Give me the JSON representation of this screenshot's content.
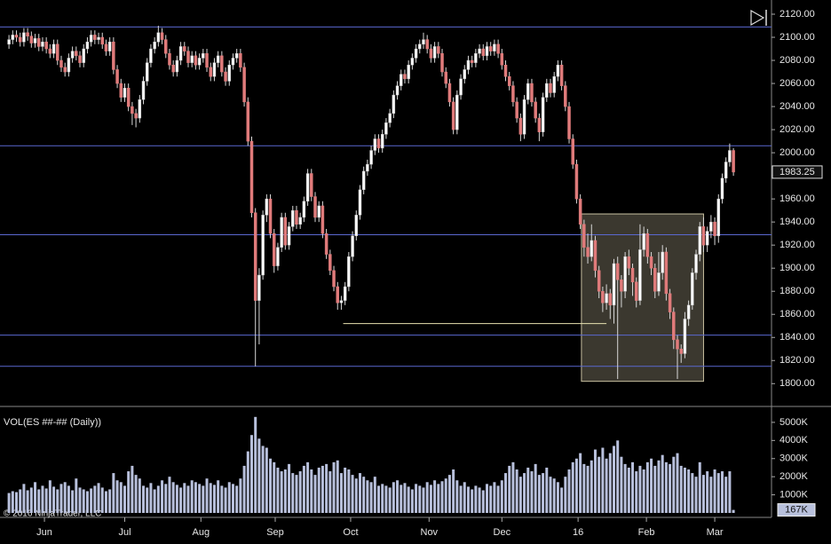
{
  "chart_data": [
    {
      "type": "candlestick",
      "up_color": "#ffffff",
      "down_color": "#e07b7b",
      "wick_color": "#d8d8d8",
      "xlim": [
        -2.4,
        204.2
      ],
      "xticks": [
        {
          "value": 9.5,
          "label": "Jun"
        },
        {
          "value": 31,
          "label": "Jul"
        },
        {
          "value": 51.4,
          "label": "Aug"
        },
        {
          "value": 71.3,
          "label": "Sep"
        },
        {
          "value": 91.5,
          "label": "Oct"
        },
        {
          "value": 112.5,
          "label": "Nov"
        },
        {
          "value": 132,
          "label": "Dec"
        },
        {
          "value": 152.4,
          "label": "16"
        },
        {
          "value": 170.7,
          "label": "Feb"
        },
        {
          "value": 189,
          "label": "Mar"
        }
      ],
      "ylim": [
        1781,
        2130
      ],
      "yticks": [
        {
          "value": 1800,
          "label": "1800.00"
        },
        {
          "value": 1820,
          "label": "1820.00"
        },
        {
          "value": 1840,
          "label": "1840.00"
        },
        {
          "value": 1860,
          "label": "1860.00"
        },
        {
          "value": 1880,
          "label": "1880.00"
        },
        {
          "value": 1900,
          "label": "1900.00"
        },
        {
          "value": 1920,
          "label": "1920.00"
        },
        {
          "value": 1940,
          "label": "1940.00"
        },
        {
          "value": 1960,
          "label": "1960.00"
        },
        {
          "value": 1980,
          "label": "1980.00"
        },
        {
          "value": 2000,
          "label": "2000.00"
        },
        {
          "value": 2020,
          "label": "2020.00"
        },
        {
          "value": 2040,
          "label": "2040.00"
        },
        {
          "value": 2060,
          "label": "2060.00"
        },
        {
          "value": 2080,
          "label": "2080.00"
        },
        {
          "value": 2100,
          "label": "2100.00"
        },
        {
          "value": 2120,
          "label": "2120.00"
        }
      ],
      "open": [
        2094,
        2098,
        2102,
        2100,
        2096,
        2104,
        2101,
        2095,
        2099,
        2092,
        2096,
        2090,
        2086,
        2094,
        2080,
        2074,
        2070,
        2082,
        2088,
        2084,
        2078,
        2090,
        2096,
        2102,
        2098,
        2100,
        2094,
        2088,
        2096,
        2072,
        2060,
        2048,
        2056,
        2040,
        2034,
        2030,
        2046,
        2062,
        2078,
        2090,
        2096,
        2104,
        2098,
        2086,
        2076,
        2070,
        2080,
        2092,
        2088,
        2078,
        2084,
        2076,
        2082,
        2086,
        2074,
        2066,
        2078,
        2084,
        2070,
        2062,
        2076,
        2082,
        2086,
        2074,
        2044,
        2010,
        1948,
        1872,
        1894,
        1946,
        1960,
        1930,
        1902,
        1918,
        1944,
        1920,
        1936,
        1950,
        1938,
        1944,
        1958,
        1982,
        1962,
        1944,
        1954,
        1930,
        1912,
        1898,
        1884,
        1870,
        1872,
        1884,
        1910,
        1928,
        1946,
        1968,
        1984,
        1990,
        2002,
        2012,
        2004,
        2016,
        2026,
        2034,
        2050,
        2058,
        2068,
        2064,
        2076,
        2082,
        2090,
        2094,
        2098,
        2090,
        2082,
        2092,
        2086,
        2070,
        2060,
        2044,
        2020,
        2050,
        2064,
        2072,
        2080,
        2078,
        2086,
        2090,
        2084,
        2092,
        2088,
        2094,
        2086,
        2076,
        2066,
        2058,
        2044,
        2030,
        2016,
        2046,
        2060,
        2044,
        2030,
        2018,
        2048,
        2060,
        2052,
        2066,
        2076,
        2058,
        2040,
        2012,
        1990,
        1960,
        1938,
        1918,
        1910,
        1924,
        1898,
        1880,
        1870,
        1878,
        1868,
        1904,
        1890,
        1880,
        1910,
        1900,
        1888,
        1872,
        1916,
        1930,
        1910,
        1900,
        1880,
        1896,
        1914,
        1878,
        1862,
        1838,
        1830,
        1826,
        1856,
        1868,
        1896,
        1912,
        1936,
        1920,
        1932,
        1940,
        1928,
        1960,
        1978,
        1992,
        2002
      ],
      "high": [
        2102,
        2106,
        2106,
        2104,
        2108,
        2108,
        2105,
        2103,
        2103,
        2100,
        2100,
        2094,
        2098,
        2098,
        2084,
        2078,
        2086,
        2092,
        2092,
        2088,
        2094,
        2100,
        2106,
        2106,
        2104,
        2104,
        2098,
        2100,
        2100,
        2076,
        2064,
        2060,
        2060,
        2044,
        2038,
        2050,
        2066,
        2082,
        2094,
        2100,
        2110,
        2108,
        2102,
        2090,
        2080,
        2084,
        2096,
        2096,
        2092,
        2088,
        2088,
        2086,
        2090,
        2090,
        2078,
        2082,
        2088,
        2088,
        2074,
        2080,
        2086,
        2090,
        2090,
        2078,
        2048,
        2014,
        1952,
        1900,
        1950,
        1964,
        1964,
        1934,
        1922,
        1948,
        1948,
        1940,
        1954,
        1954,
        1948,
        1962,
        1986,
        1986,
        1966,
        1958,
        1958,
        1934,
        1916,
        1902,
        1888,
        1876,
        1888,
        1914,
        1932,
        1950,
        1972,
        1988,
        1994,
        2006,
        2016,
        2016,
        2020,
        2030,
        2038,
        2054,
        2062,
        2072,
        2072,
        2080,
        2086,
        2094,
        2098,
        2104,
        2102,
        2094,
        2096,
        2096,
        2090,
        2074,
        2064,
        2048,
        2054,
        2068,
        2076,
        2084,
        2084,
        2090,
        2094,
        2094,
        2096,
        2096,
        2098,
        2098,
        2090,
        2080,
        2070,
        2062,
        2048,
        2034,
        2050,
        2064,
        2064,
        2048,
        2034,
        2052,
        2064,
        2064,
        2070,
        2080,
        2080,
        2062,
        2044,
        2016,
        1994,
        1964,
        1942,
        1930,
        1938,
        1928,
        1902,
        1884,
        1886,
        1882,
        1908,
        1910,
        1894,
        1914,
        1916,
        1904,
        1892,
        1938,
        1936,
        1934,
        1914,
        1904,
        1914,
        1920,
        1918,
        1882,
        1866,
        1842,
        1834,
        1862,
        1872,
        1900,
        1916,
        1940,
        1944,
        1936,
        1946,
        1944,
        1964,
        1982,
        1996,
        2008,
        2004
      ],
      "low": [
        2090,
        2094,
        2096,
        2092,
        2092,
        2097,
        2091,
        2091,
        2088,
        2088,
        2086,
        2082,
        2082,
        2076,
        2070,
        2066,
        2066,
        2078,
        2080,
        2074,
        2074,
        2086,
        2092,
        2094,
        2094,
        2090,
        2084,
        2084,
        2068,
        2056,
        2044,
        2044,
        2036,
        2024,
        2022,
        2026,
        2042,
        2058,
        2074,
        2086,
        2092,
        2094,
        2082,
        2072,
        2066,
        2066,
        2076,
        2084,
        2074,
        2074,
        2072,
        2072,
        2078,
        2070,
        2062,
        2062,
        2074,
        2066,
        2058,
        2058,
        2072,
        2078,
        2070,
        2040,
        2006,
        1944,
        1815,
        1834,
        1890,
        1940,
        1926,
        1896,
        1898,
        1914,
        1916,
        1916,
        1932,
        1934,
        1934,
        1940,
        1954,
        1958,
        1940,
        1940,
        1926,
        1908,
        1894,
        1880,
        1864,
        1864,
        1868,
        1880,
        1906,
        1924,
        1942,
        1964,
        1980,
        1986,
        1998,
        2000,
        2000,
        2012,
        2022,
        2030,
        2046,
        2054,
        2060,
        2060,
        2072,
        2078,
        2086,
        2090,
        2086,
        2078,
        2078,
        2082,
        2066,
        2056,
        2040,
        2016,
        2016,
        2046,
        2060,
        2068,
        2074,
        2074,
        2082,
        2080,
        2080,
        2084,
        2084,
        2082,
        2072,
        2062,
        2054,
        2040,
        2026,
        2010,
        2012,
        2042,
        2040,
        2026,
        2010,
        2014,
        2044,
        2048,
        2048,
        2062,
        2054,
        2036,
        2008,
        1986,
        1956,
        1934,
        1910,
        1904,
        1906,
        1892,
        1874,
        1862,
        1864,
        1856,
        1852,
        1804,
        1866,
        1874,
        1894,
        1876,
        1866,
        1868,
        1910,
        1904,
        1894,
        1874,
        1876,
        1890,
        1872,
        1856,
        1830,
        1804,
        1818,
        1822,
        1850,
        1864,
        1890,
        1906,
        1914,
        1914,
        1926,
        1920,
        1922,
        1956,
        1974,
        1988,
        1980
      ],
      "close": [
        2098,
        2102,
        2100,
        2096,
        2104,
        2101,
        2095,
        2099,
        2092,
        2096,
        2090,
        2086,
        2094,
        2080,
        2074,
        2070,
        2082,
        2088,
        2084,
        2078,
        2090,
        2096,
        2102,
        2098,
        2100,
        2094,
        2088,
        2096,
        2072,
        2060,
        2048,
        2056,
        2040,
        2034,
        2030,
        2046,
        2062,
        2078,
        2090,
        2096,
        2104,
        2098,
        2086,
        2076,
        2070,
        2080,
        2092,
        2088,
        2078,
        2084,
        2076,
        2082,
        2086,
        2074,
        2066,
        2078,
        2084,
        2070,
        2062,
        2076,
        2082,
        2086,
        2074,
        2044,
        2010,
        1948,
        1872,
        1894,
        1946,
        1960,
        1930,
        1902,
        1918,
        1944,
        1920,
        1936,
        1950,
        1938,
        1944,
        1958,
        1982,
        1962,
        1944,
        1954,
        1930,
        1912,
        1898,
        1884,
        1870,
        1872,
        1884,
        1910,
        1928,
        1946,
        1968,
        1984,
        1990,
        2002,
        2012,
        2004,
        2016,
        2026,
        2034,
        2050,
        2058,
        2068,
        2064,
        2076,
        2082,
        2090,
        2094,
        2098,
        2090,
        2082,
        2092,
        2086,
        2070,
        2060,
        2044,
        2020,
        2050,
        2064,
        2072,
        2080,
        2078,
        2086,
        2090,
        2084,
        2092,
        2088,
        2094,
        2086,
        2076,
        2066,
        2058,
        2044,
        2030,
        2016,
        2046,
        2060,
        2044,
        2030,
        2018,
        2048,
        2060,
        2052,
        2066,
        2076,
        2058,
        2040,
        2012,
        1990,
        1960,
        1938,
        1918,
        1910,
        1924,
        1898,
        1880,
        1870,
        1878,
        1868,
        1904,
        1890,
        1880,
        1910,
        1900,
        1888,
        1872,
        1916,
        1930,
        1910,
        1900,
        1880,
        1896,
        1914,
        1878,
        1862,
        1838,
        1830,
        1826,
        1856,
        1868,
        1896,
        1912,
        1936,
        1920,
        1932,
        1940,
        1928,
        1960,
        1978,
        1992,
        2002,
        1983.25
      ],
      "last_price": 1983.25,
      "hlines": {
        "color": "#5a68d0",
        "values": [
          2109,
          2006,
          1929,
          1842,
          1815
        ]
      },
      "segment": {
        "color": "#e8e2b0",
        "x": [
          89.5,
          160
        ],
        "y": 1852
      },
      "box": {
        "color": "#6b6656",
        "x": [
          153.3,
          186
        ],
        "y": [
          1802,
          1947
        ]
      }
    },
    {
      "type": "bar",
      "title": "VOL(ES ##-## (Daily))",
      "footer": "© 2016 NinjaTrader, LLC",
      "color": "#b8c0dc",
      "ylim": [
        0,
        5780000
      ],
      "yticks": [
        {
          "value": 1000000,
          "label": "1000K"
        },
        {
          "value": 2000000,
          "label": "2000K"
        },
        {
          "value": 3000000,
          "label": "3000K"
        },
        {
          "value": 4000000,
          "label": "4000K"
        },
        {
          "value": 5000000,
          "label": "5000K"
        }
      ],
      "values": [
        1100000,
        1200000,
        1150000,
        1300000,
        1600000,
        1250000,
        1400000,
        1700000,
        1300000,
        1500000,
        1350000,
        1800000,
        1450000,
        1300000,
        1600000,
        1700000,
        1500000,
        1250000,
        1900000,
        1400000,
        1300000,
        1200000,
        1350000,
        1500000,
        1650000,
        1400000,
        1200000,
        1300000,
        2200000,
        1800000,
        1700000,
        1500000,
        2300000,
        2600000,
        2100000,
        1900000,
        1500000,
        1400000,
        1650000,
        1300000,
        1500000,
        1800000,
        1600000,
        2000000,
        1700000,
        1550000,
        1400000,
        1650000,
        1500000,
        1800000,
        1700000,
        1600000,
        1500000,
        1900000,
        1650000,
        1550000,
        1800000,
        1500000,
        1400000,
        1700000,
        1600000,
        1500000,
        1900000,
        2600000,
        3400000,
        4300000,
        5300000,
        4100000,
        3700000,
        3600000,
        3000000,
        2800000,
        2500000,
        2300000,
        2400000,
        2700000,
        2200000,
        2100000,
        2300000,
        2600000,
        2800000,
        2400000,
        2100000,
        2500000,
        2600000,
        2700000,
        2300000,
        2800000,
        2900000,
        2200000,
        2500000,
        2400000,
        2100000,
        1900000,
        2200000,
        2000000,
        1800000,
        1700000,
        2000000,
        1500000,
        1600000,
        1500000,
        1400000,
        1700000,
        1800000,
        1550000,
        1650000,
        1450000,
        1300000,
        1600000,
        1500000,
        1400000,
        1700000,
        1550000,
        1800000,
        1600000,
        1750000,
        1900000,
        2100000,
        2400000,
        1800000,
        1500000,
        1700000,
        1450000,
        1300000,
        1500000,
        1400000,
        1250000,
        1600000,
        1500000,
        1700000,
        1500000,
        1800000,
        2200000,
        2600000,
        2800000,
        2400000,
        2000000,
        2200000,
        2500000,
        2300000,
        2700000,
        2100000,
        2200000,
        2500000,
        2000000,
        1900000,
        1700000,
        1400000,
        2000000,
        2400000,
        2800000,
        3000000,
        3300000,
        2700000,
        2600000,
        2900000,
        3500000,
        3100000,
        3600000,
        3000000,
        3300000,
        3700000,
        4000000,
        3100000,
        2700000,
        2500000,
        2800000,
        2300000,
        2600000,
        2400000,
        2800000,
        3000000,
        2600000,
        2900000,
        3200000,
        2800000,
        2700000,
        3100000,
        3300000,
        2600000,
        2500000,
        2400000,
        2200000,
        2000000,
        2800000,
        2100000,
        2300000,
        2000000,
        2400000,
        2200000,
        2300000,
        2000000,
        2300000,
        167000
      ],
      "last_volume": {
        "value": 167000,
        "label": "167K"
      }
    }
  ]
}
